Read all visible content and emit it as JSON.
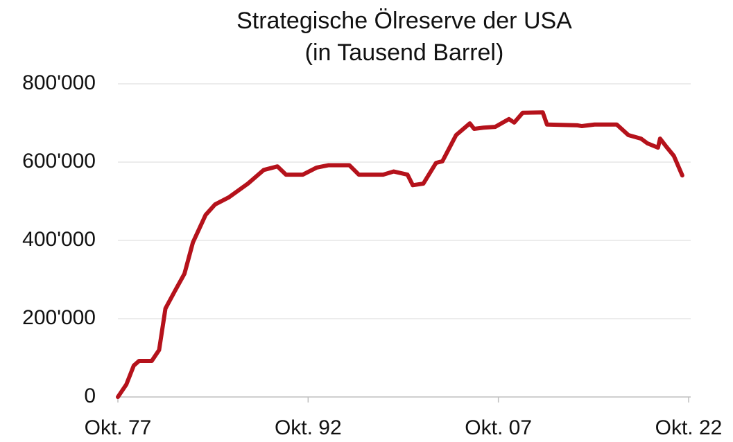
{
  "chart_data": {
    "type": "line",
    "title": "Strategische Ölreserve der USA",
    "subtitle": "(in Tausend Barrel)",
    "x": [
      "1977-10",
      "1978-06",
      "1979-01",
      "1979-06",
      "1980-06",
      "1981-01",
      "1981-07",
      "1982-04",
      "1983-01",
      "1983-09",
      "1984-09",
      "1985-06",
      "1986-07",
      "1988-01",
      "1989-04",
      "1990-05",
      "1991-01",
      "1992-05",
      "1993-06",
      "1994-05",
      "1996-01",
      "1996-10",
      "1998-09",
      "1999-07",
      "2000-08",
      "2001-01",
      "2001-11",
      "2002-11",
      "2003-05",
      "2004-06",
      "2005-07",
      "2005-11",
      "2006-08",
      "2007-07",
      "2008-08",
      "2009-01",
      "2009-09",
      "2011-04",
      "2011-08",
      "2014-01",
      "2014-05",
      "2015-05",
      "2017-02",
      "2018-01",
      "2019-01",
      "2019-07",
      "2020-05",
      "2020-07",
      "2021-01",
      "2021-08",
      "2022-04"
    ],
    "series": [
      {
        "color": "#b5121b",
        "values": [
          0,
          32000,
          80000,
          92000,
          92000,
          120000,
          226000,
          271000,
          315000,
          395000,
          465000,
          492000,
          510000,
          545000,
          580000,
          589000,
          568000,
          568000,
          586000,
          592000,
          592000,
          568000,
          568000,
          576000,
          568000,
          541000,
          545000,
          598000,
          602000,
          669000,
          699000,
          685000,
          688000,
          690000,
          710000,
          701000,
          726000,
          727000,
          696000,
          694000,
          692000,
          696000,
          696000,
          669000,
          660000,
          648000,
          637000,
          660000,
          639000,
          616000,
          566000
        ]
      }
    ],
    "xlim": [
      "1977-10",
      "2022-10"
    ],
    "xticks": [
      {
        "value": "1977-10",
        "label": "Okt. 77"
      },
      {
        "value": "1992-10",
        "label": "Okt. 92"
      },
      {
        "value": "2007-10",
        "label": "Okt. 07"
      },
      {
        "value": "2022-10",
        "label": "Okt. 22"
      }
    ],
    "ylim": [
      0,
      800000
    ],
    "yticks": [
      0,
      {
        "value": 200000,
        "label": "200'000"
      },
      {
        "value": 400000,
        "label": "400'000"
      },
      {
        "value": 600000,
        "label": "600'000"
      },
      {
        "value": 800000,
        "label": "800'000"
      }
    ],
    "grid": true
  }
}
